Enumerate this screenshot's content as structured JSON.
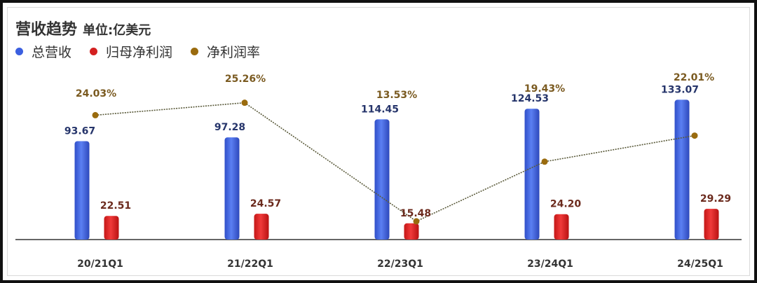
{
  "title": "营收趋势",
  "unit": "单位:亿美元",
  "colors": {
    "revenue": "#3b5fe0",
    "net_income": "#e02020",
    "margin": "#9a6b0e",
    "revenue_label": "#26356b",
    "net_income_label": "#6b2a1d",
    "margin_label": "#7a5a20"
  },
  "chart_data": {
    "type": "bar",
    "categories": [
      "20/21Q1",
      "21/22Q1",
      "22/23Q1",
      "23/24Q1",
      "24/25Q1"
    ],
    "series": [
      {
        "name": "总营收",
        "type": "bar",
        "values": [
          93.67,
          97.28,
          114.45,
          124.53,
          133.07
        ],
        "labels": [
          "93.67",
          "97.28",
          "114.45",
          "124.53",
          "133.07"
        ]
      },
      {
        "name": "归母净利润",
        "type": "bar",
        "values": [
          22.51,
          24.57,
          15.48,
          24.2,
          29.29
        ],
        "labels": [
          "22.51",
          "24.57",
          "15.48",
          "24.20",
          "29.29"
        ]
      },
      {
        "name": "净利润率",
        "type": "line",
        "values": [
          24.03,
          25.26,
          13.53,
          19.43,
          22.01
        ],
        "labels": [
          "24.03%",
          "25.26%",
          "13.53%",
          "19.43%",
          "22.01%"
        ]
      }
    ],
    "legend": "top-left",
    "grid": false
  }
}
